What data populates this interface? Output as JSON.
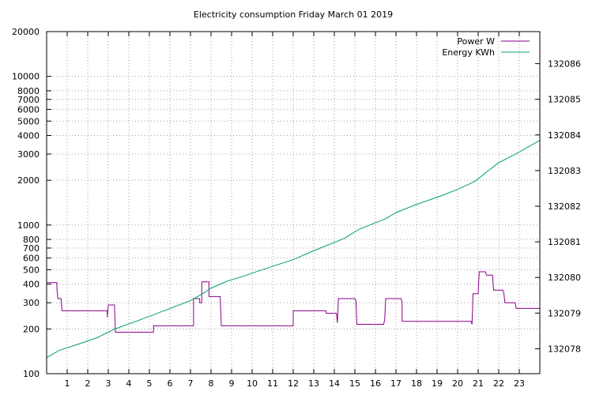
{
  "chart_data": {
    "type": "line",
    "title": "Electricity consumption Friday March 01 2019",
    "x": {
      "range": [
        0,
        24
      ],
      "tick_values": [
        1,
        2,
        3,
        4,
        5,
        6,
        7,
        8,
        9,
        10,
        11,
        12,
        13,
        14,
        15,
        16,
        17,
        18,
        19,
        20,
        21,
        22,
        23
      ],
      "tick_labels": [
        "1",
        "2",
        "3",
        "4",
        "5",
        "6",
        "7",
        "8",
        "9",
        "10",
        "11",
        "12",
        "13",
        "14",
        "15",
        "16",
        "17",
        "18",
        "19",
        "20",
        "21",
        "22",
        "23"
      ],
      "grid": true
    },
    "y_left": {
      "scale": "log",
      "range": [
        100,
        20000
      ],
      "tick_values": [
        100,
        200,
        300,
        400,
        500,
        600,
        700,
        800,
        1000,
        2000,
        3000,
        4000,
        5000,
        6000,
        7000,
        8000,
        10000,
        20000
      ],
      "tick_labels": [
        "100",
        "200",
        "300",
        "400",
        "500",
        "600",
        "700",
        "800",
        "1000",
        "2000",
        "3000",
        "4000",
        "5000",
        "6000",
        "7000",
        "8000",
        "10000",
        "20000"
      ],
      "grid": true
    },
    "y_right": {
      "scale": "linear",
      "range": [
        132077.3,
        132086.9
      ],
      "tick_values": [
        132078,
        132079,
        132080,
        132081,
        132082,
        132083,
        132084,
        132085,
        132086
      ],
      "tick_labels": [
        "132078",
        "132079",
        "132080",
        "132081",
        "132082",
        "132083",
        "132084",
        "132085",
        "132086"
      ]
    },
    "legend": {
      "position": "top-right"
    },
    "series": [
      {
        "name": "Power W",
        "axis": "left",
        "color": "#8b008b",
        "step": true,
        "points": [
          [
            0,
            410
          ],
          [
            0.5,
            410
          ],
          [
            0.5,
            370
          ],
          [
            0.55,
            320
          ],
          [
            0.7,
            320
          ],
          [
            0.75,
            265
          ],
          [
            2.95,
            265
          ],
          [
            2.95,
            240
          ],
          [
            3.0,
            290
          ],
          [
            3.3,
            290
          ],
          [
            3.35,
            190
          ],
          [
            5.2,
            190
          ],
          [
            5.2,
            210
          ],
          [
            7.15,
            210
          ],
          [
            7.15,
            320
          ],
          [
            7.45,
            320
          ],
          [
            7.45,
            300
          ],
          [
            7.55,
            300
          ],
          [
            7.55,
            415
          ],
          [
            7.9,
            415
          ],
          [
            7.9,
            330
          ],
          [
            8.45,
            330
          ],
          [
            8.45,
            310
          ],
          [
            8.5,
            210
          ],
          [
            12.0,
            210
          ],
          [
            12.0,
            265
          ],
          [
            13.6,
            265
          ],
          [
            13.6,
            255
          ],
          [
            14.1,
            255
          ],
          [
            14.15,
            220
          ],
          [
            14.2,
            320
          ],
          [
            15.0,
            320
          ],
          [
            15.05,
            310
          ],
          [
            15.1,
            215
          ],
          [
            16.4,
            215
          ],
          [
            16.45,
            230
          ],
          [
            16.5,
            320
          ],
          [
            17.25,
            320
          ],
          [
            17.3,
            300
          ],
          [
            17.3,
            225
          ],
          [
            20.65,
            225
          ],
          [
            20.7,
            215
          ],
          [
            20.75,
            345
          ],
          [
            21.0,
            345
          ],
          [
            21.05,
            485
          ],
          [
            21.35,
            485
          ],
          [
            21.4,
            460
          ],
          [
            21.7,
            460
          ],
          [
            21.75,
            365
          ],
          [
            22.2,
            365
          ],
          [
            22.25,
            350
          ],
          [
            22.3,
            300
          ],
          [
            22.8,
            300
          ],
          [
            22.85,
            275
          ],
          [
            24,
            275
          ]
        ]
      },
      {
        "name": "Energy KWh",
        "axis": "right",
        "color": "#009e73",
        "step": false,
        "points": [
          [
            0,
            132077.75
          ],
          [
            0.6,
            132077.95
          ],
          [
            1.5,
            132078.12
          ],
          [
            2.5,
            132078.32
          ],
          [
            3.3,
            132078.55
          ],
          [
            4.5,
            132078.8
          ],
          [
            5.5,
            132079.02
          ],
          [
            7.0,
            132079.35
          ],
          [
            7.6,
            132079.55
          ],
          [
            8.0,
            132079.7
          ],
          [
            8.8,
            132079.9
          ],
          [
            9.5,
            132080.02
          ],
          [
            10.5,
            132080.22
          ],
          [
            12.0,
            132080.5
          ],
          [
            13.0,
            132080.75
          ],
          [
            14.5,
            132081.1
          ],
          [
            15.2,
            132081.35
          ],
          [
            16.5,
            132081.65
          ],
          [
            17.0,
            132081.82
          ],
          [
            18.0,
            132082.05
          ],
          [
            19.0,
            132082.25
          ],
          [
            20.0,
            132082.47
          ],
          [
            20.85,
            132082.7
          ],
          [
            21.5,
            132083.0
          ],
          [
            22.0,
            132083.22
          ],
          [
            23.0,
            132083.52
          ],
          [
            24,
            132083.85
          ]
        ]
      }
    ]
  }
}
